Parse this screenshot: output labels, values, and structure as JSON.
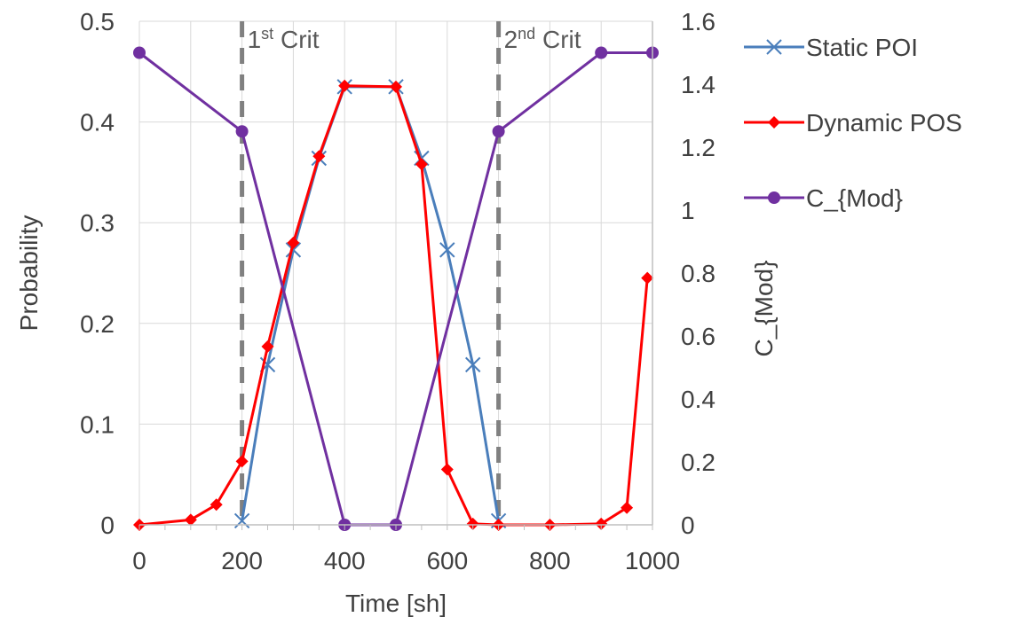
{
  "chart_data": {
    "type": "line",
    "xlabel": "Time [sh]",
    "ylabel": "Probability",
    "y2label": "C_{Mod}",
    "xlim": [
      0,
      1000
    ],
    "ylim": [
      0,
      0.5
    ],
    "y2lim": [
      0,
      1.6
    ],
    "x_ticks": [
      "0",
      "200",
      "400",
      "600",
      "800",
      "1000"
    ],
    "y_ticks": [
      "0",
      "0.1",
      "0.2",
      "0.3",
      "0.4",
      "0.5"
    ],
    "y2_ticks": [
      "0",
      "0.2",
      "0.4",
      "0.6",
      "0.8",
      "1",
      "1.2",
      "1.4",
      "1.6"
    ],
    "grid": true,
    "legend_position": "right",
    "series": [
      {
        "name": "Static POI",
        "axis": "left",
        "color": "#4a7ebb",
        "marker": "x",
        "x": [
          200,
          250,
          300,
          350,
          400,
          500,
          550,
          600,
          650,
          700
        ],
        "y": [
          0.004,
          0.159,
          0.273,
          0.364,
          0.435,
          0.435,
          0.364,
          0.273,
          0.159,
          0.004
        ]
      },
      {
        "name": "Dynamic POS",
        "axis": "left",
        "color": "#ff0000",
        "marker": "diamond",
        "x": [
          0,
          100,
          150,
          200,
          250,
          300,
          350,
          400,
          500,
          550,
          600,
          650,
          700,
          800,
          900,
          950,
          990
        ],
        "y": [
          0,
          0.005,
          0.02,
          0.063,
          0.177,
          0.28,
          0.366,
          0.436,
          0.435,
          0.358,
          0.055,
          0.001,
          0,
          0,
          0.001,
          0.017,
          0.245
        ]
      },
      {
        "name": "C_{Mod}",
        "axis": "right",
        "color": "#7030a0",
        "marker": "circle",
        "x": [
          0,
          200,
          400,
          500,
          700,
          900,
          1000
        ],
        "y": [
          1.5,
          1.25,
          0,
          0,
          1.25,
          1.5,
          1.5
        ]
      }
    ],
    "vertical_lines": [
      {
        "x": 200,
        "label_base": "1",
        "label_sup": "st",
        "label_tail": " Crit"
      },
      {
        "x": 700,
        "label_base": "2",
        "label_sup": "nd",
        "label_tail": " Crit"
      }
    ]
  }
}
